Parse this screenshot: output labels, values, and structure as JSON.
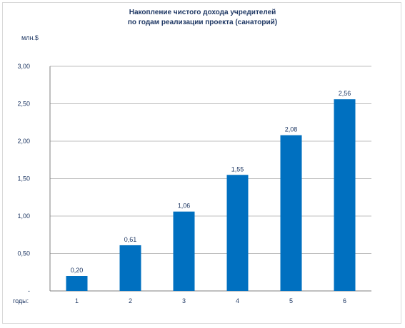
{
  "chart_data": {
    "type": "bar",
    "title_line1": "Накопление чистого дохода учредителей",
    "title_line2": "по годам реализации проекта (санаторий)",
    "ylabel": "млн.$",
    "xlabel": "годы:",
    "categories": [
      "1",
      "2",
      "3",
      "4",
      "5",
      "6"
    ],
    "values": [
      0.2,
      0.61,
      1.06,
      1.55,
      2.08,
      2.56
    ],
    "value_labels": [
      "0,20",
      "0,61",
      "1,06",
      "1,55",
      "2,08",
      "2,56"
    ],
    "yticks": [
      0,
      0.5,
      1.0,
      1.5,
      2.0,
      2.5,
      3.0
    ],
    "ytick_labels": [
      "-",
      "0,50",
      "1,00",
      "1,50",
      "2,00",
      "2,50",
      "3,00"
    ],
    "ylim": [
      0,
      3
    ],
    "grid": true,
    "bar_color": "#0070c0",
    "grid_color": "#bfbfbf"
  }
}
